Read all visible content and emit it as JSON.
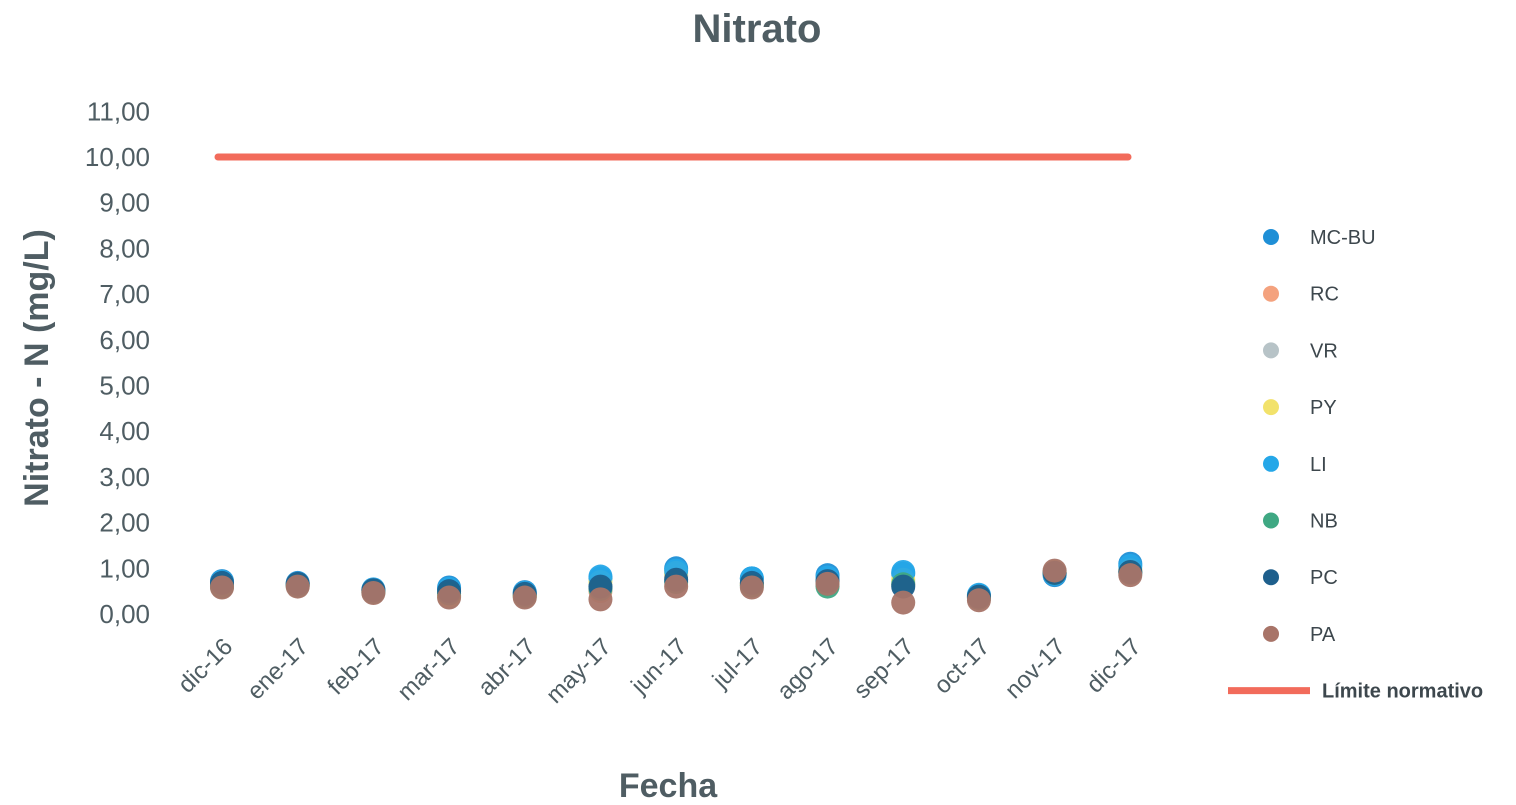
{
  "chart_data": {
    "type": "scatter",
    "title": "Nitrato",
    "xlabel": "Fecha",
    "ylabel": "Nitrato - N (mg/L)",
    "categories": [
      "dic-16",
      "ene-17",
      "feb-17",
      "mar-17",
      "abr-17",
      "may-17",
      "jun-17",
      "jul-17",
      "ago-17",
      "sep-17",
      "oct-17",
      "nov-17",
      "dic-17"
    ],
    "y_ticks": [
      "0,00",
      "1,00",
      "2,00",
      "3,00",
      "4,00",
      "5,00",
      "6,00",
      "7,00",
      "8,00",
      "9,00",
      "10,00",
      "11,00"
    ],
    "ylim": [
      0,
      11
    ],
    "grid": false,
    "legend_position": "right",
    "series": [
      {
        "name": "MC-BU",
        "color": "#1f8fd6",
        "values": [
          0.72,
          0.68,
          0.52,
          0.58,
          0.48,
          0.78,
          1.0,
          0.78,
          0.85,
          0.88,
          0.4,
          0.85,
          1.1
        ]
      },
      {
        "name": "RC",
        "color": "#f4a27e",
        "values": [
          0.62,
          0.65,
          0.5,
          0.4,
          0.4,
          0.5,
          0.82,
          0.65,
          0.7,
          0.65,
          0.36,
          0.9,
          0.95
        ]
      },
      {
        "name": "VR",
        "color": "#b7c3c7",
        "values": [
          0.6,
          0.63,
          0.48,
          0.38,
          0.38,
          0.6,
          0.85,
          0.62,
          0.65,
          0.7,
          0.35,
          0.9,
          0.92
        ]
      },
      {
        "name": "PY",
        "color": "#f2e26b",
        "values": [
          0.62,
          0.64,
          0.5,
          0.4,
          0.4,
          0.7,
          0.9,
          0.66,
          0.72,
          0.75,
          0.37,
          0.92,
          0.96
        ]
      },
      {
        "name": "LI",
        "color": "#25a7e8",
        "values": [
          0.7,
          0.66,
          0.54,
          0.55,
          0.46,
          0.82,
          0.95,
          0.78,
          0.8,
          0.92,
          0.42,
          0.88,
          1.05
        ]
      },
      {
        "name": "NB",
        "color": "#3fa883",
        "values": [
          0.6,
          0.62,
          0.48,
          0.45,
          0.4,
          0.55,
          0.7,
          0.62,
          0.6,
          0.65,
          0.35,
          0.9,
          0.9
        ]
      },
      {
        "name": "PC",
        "color": "#1e5f8c",
        "values": [
          0.68,
          0.66,
          0.52,
          0.5,
          0.44,
          0.6,
          0.75,
          0.68,
          0.72,
          0.6,
          0.38,
          0.9,
          0.92
        ]
      },
      {
        "name": "PA",
        "color": "#a87468",
        "values": [
          0.58,
          0.6,
          0.46,
          0.36,
          0.36,
          0.32,
          0.6,
          0.58,
          0.66,
          0.25,
          0.3,
          0.95,
          0.85
        ]
      }
    ],
    "reference_line": {
      "name": "Límite normativo",
      "value": 10.0,
      "color": "#f26b5b"
    }
  }
}
